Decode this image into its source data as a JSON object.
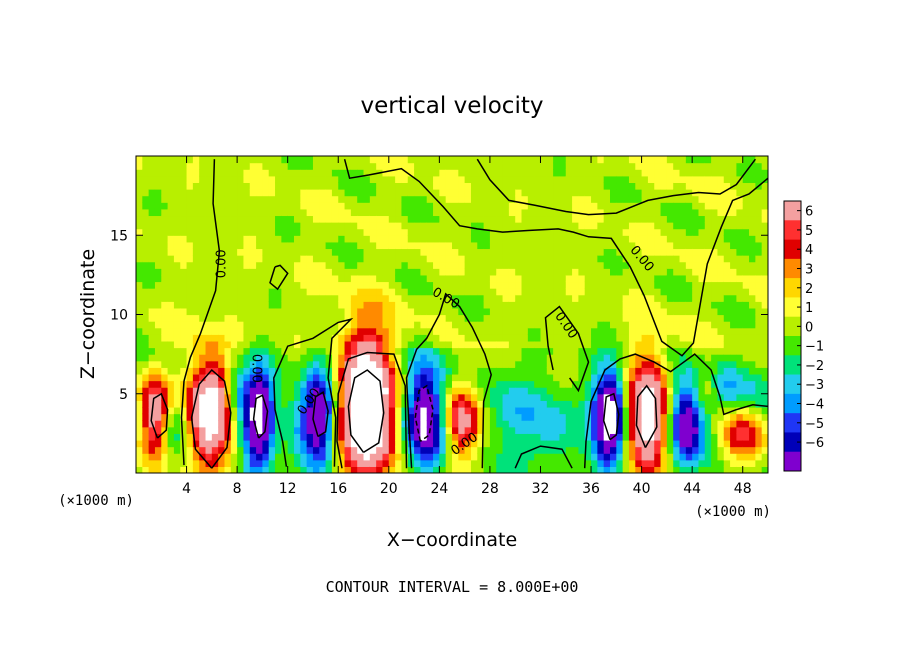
{
  "chart_data": {
    "type": "heatmap",
    "title": "vertical velocity",
    "xlabel": "X−coordinate",
    "ylabel": "Z−coordinate",
    "x_unit_label": "(×1000 m)",
    "z_unit_label": "(×1000 m)",
    "xlim": [
      0,
      50
    ],
    "ylim": [
      0,
      20
    ],
    "x_ticks": [
      4,
      8,
      12,
      16,
      20,
      24,
      28,
      32,
      36,
      40,
      44,
      48
    ],
    "y_ticks": [
      5,
      10,
      15
    ],
    "contour_label": "0.00",
    "footer": "CONTOUR INTERVAL = 8.000E+00",
    "colorbar": {
      "ticks": [
        "6",
        "5",
        "4",
        "3",
        "2",
        "1",
        "0",
        "−1",
        "−2",
        "−3",
        "−4",
        "−5",
        "−6"
      ],
      "colors": [
        "#f4a0a0",
        "#ff3030",
        "#e00000",
        "#ff8a00",
        "#ffd700",
        "#ffff33",
        "#b8ef00",
        "#44e800",
        "#00e27a",
        "#22ccee",
        "#009cff",
        "#1f36f5",
        "#0000b8",
        "#7f00cf"
      ]
    },
    "features": [
      {
        "x": 1.6,
        "z": 3.6,
        "sx": 0.9,
        "sy": 1.8,
        "amp": 7
      },
      {
        "x": 2.8,
        "z": 3.2,
        "sx": 0.9,
        "sy": 1.6,
        "amp": -3
      },
      {
        "x": 5.8,
        "z": 3.9,
        "sx": 1.3,
        "sy": 2.5,
        "amp": 9
      },
      {
        "x": 9.7,
        "z": 3.5,
        "sx": 0.85,
        "sy": 2.2,
        "amp": -8
      },
      {
        "x": 7.9,
        "z": 4.8,
        "sx": 0.7,
        "sy": 1.6,
        "amp": -3
      },
      {
        "x": 14.5,
        "z": 3.6,
        "sx": 0.9,
        "sy": 2.3,
        "amp": -7
      },
      {
        "x": 12.8,
        "z": 2.8,
        "sx": 0.8,
        "sy": 1.6,
        "amp": -2
      },
      {
        "x": 18.3,
        "z": 4.2,
        "sx": 1.6,
        "sy": 3.2,
        "amp": 11
      },
      {
        "x": 22.8,
        "z": 3.6,
        "sx": 1.1,
        "sy": 2.4,
        "amp": -8
      },
      {
        "x": 25.8,
        "z": 3.2,
        "sx": 1.0,
        "sy": 1.8,
        "amp": 6
      },
      {
        "x": 29.8,
        "z": 3.5,
        "sx": 1.8,
        "sy": 1.8,
        "amp": -2
      },
      {
        "x": 33.2,
        "z": 2.8,
        "sx": 1.4,
        "sy": 1.5,
        "amp": -2
      },
      {
        "x": 37.5,
        "z": 3.4,
        "sx": 0.9,
        "sy": 2.2,
        "amp": -9
      },
      {
        "x": 40.5,
        "z": 3.6,
        "sx": 1.2,
        "sy": 2.6,
        "amp": 9
      },
      {
        "x": 43.5,
        "z": 3.1,
        "sx": 1.0,
        "sy": 1.9,
        "amp": -7
      },
      {
        "x": 45.0,
        "z": 5.5,
        "sx": 0.7,
        "sy": 1.0,
        "amp": 2.5
      },
      {
        "x": 47.8,
        "z": 2.4,
        "sx": 1.2,
        "sy": 1.3,
        "amp": 4.5
      },
      {
        "x": 47.5,
        "z": 5.2,
        "sx": 2.4,
        "sy": 1.4,
        "amp": -2
      }
    ],
    "contours": [
      {
        "style": "solid",
        "points": [
          [
            6,
            0.3
          ],
          [
            4.7,
            1.5
          ],
          [
            4.4,
            3.5
          ],
          [
            5,
            5.6
          ],
          [
            6,
            6.5
          ],
          [
            7,
            5.8
          ],
          [
            7.5,
            3.8
          ],
          [
            7.2,
            1.6
          ],
          [
            6,
            0.3
          ]
        ]
      },
      {
        "style": "solid",
        "points": [
          [
            18,
            1.3
          ],
          [
            17,
            2.4
          ],
          [
            16.8,
            4.2
          ],
          [
            17.3,
            6
          ],
          [
            18.3,
            6.5
          ],
          [
            19.3,
            5.8
          ],
          [
            19.6,
            3.8
          ],
          [
            19.2,
            1.9
          ],
          [
            18,
            1.3
          ]
        ]
      },
      {
        "style": "solid",
        "points": [
          [
            40.3,
            1.6
          ],
          [
            39.6,
            3
          ],
          [
            39.7,
            4.8
          ],
          [
            40.4,
            5.5
          ],
          [
            41.1,
            4.7
          ],
          [
            41.2,
            2.9
          ],
          [
            40.3,
            1.6
          ]
        ]
      },
      {
        "style": "solid",
        "points": [
          [
            1.7,
            2.2
          ],
          [
            1.2,
            3.3
          ],
          [
            1.4,
            4.7
          ],
          [
            2,
            5
          ],
          [
            2.5,
            4
          ],
          [
            2.4,
            2.7
          ],
          [
            1.7,
            2.2
          ]
        ]
      },
      {
        "style": "solid",
        "points": [
          [
            9.7,
            2.2
          ],
          [
            9.3,
            3.4
          ],
          [
            9.5,
            4.7
          ],
          [
            10,
            4.9
          ],
          [
            10.4,
            3.9
          ],
          [
            10.2,
            2.6
          ],
          [
            9.7,
            2.2
          ]
        ]
      },
      {
        "style": "solid",
        "points": [
          [
            14.4,
            2.3
          ],
          [
            14,
            3.4
          ],
          [
            14.2,
            4.8
          ],
          [
            14.8,
            5.1
          ],
          [
            15.2,
            3.9
          ],
          [
            15,
            2.6
          ],
          [
            14.4,
            2.3
          ]
        ]
      },
      {
        "style": "solid",
        "points": [
          [
            37.5,
            2.1
          ],
          [
            37,
            3.3
          ],
          [
            37.2,
            4.8
          ],
          [
            37.8,
            5
          ],
          [
            38.2,
            3.7
          ],
          [
            38,
            2.4
          ],
          [
            37.5,
            2.1
          ]
        ]
      },
      {
        "style": "dashed",
        "points": [
          [
            22.5,
            2
          ],
          [
            22.1,
            3.5
          ],
          [
            22.4,
            5.2
          ],
          [
            23,
            5.5
          ],
          [
            23.5,
            4
          ],
          [
            23.2,
            2.4
          ],
          [
            22.5,
            2
          ]
        ]
      },
      {
        "style": "solid",
        "points": [
          [
            11.9,
            0.4
          ],
          [
            11.6,
            2
          ],
          [
            11,
            4
          ],
          [
            10.9,
            6
          ],
          [
            12,
            8
          ],
          [
            14,
            8.5
          ],
          [
            16,
            9.5
          ],
          [
            17,
            9.7
          ],
          [
            15.5,
            8.5
          ],
          [
            15.2,
            6
          ],
          [
            15.8,
            3.5
          ],
          [
            15.7,
            0.4
          ]
        ]
      },
      {
        "style": "solid",
        "points": [
          [
            6.2,
            19.8
          ],
          [
            6.1,
            17
          ],
          [
            6.6,
            14
          ],
          [
            6.3,
            11.5
          ],
          [
            5.1,
            8.8
          ],
          [
            4.3,
            7.3
          ],
          [
            3.8,
            5.8
          ],
          [
            3.6,
            3.5
          ],
          [
            3.8,
            0.5
          ]
        ]
      },
      {
        "style": "solid",
        "points": [
          [
            16.3,
            0.3
          ],
          [
            15.9,
            2
          ],
          [
            16,
            5
          ],
          [
            16.8,
            7.2
          ],
          [
            18.3,
            7.6
          ],
          [
            20.4,
            7.5
          ],
          [
            21.3,
            5.5
          ],
          [
            21.4,
            0.3
          ]
        ]
      },
      {
        "style": "solid",
        "points": [
          [
            21.8,
            0.3
          ],
          [
            21.6,
            3
          ],
          [
            21.4,
            6
          ],
          [
            22.2,
            7.8
          ],
          [
            23,
            8.5
          ],
          [
            24,
            10
          ],
          [
            24.5,
            11.3
          ],
          [
            25.6,
            10.5
          ],
          [
            26.6,
            9.2
          ],
          [
            27.6,
            7.5
          ],
          [
            28.1,
            6.2
          ],
          [
            27.5,
            4.5
          ],
          [
            27.4,
            0.3
          ]
        ]
      },
      {
        "style": "solid",
        "points": [
          [
            30,
            0.3
          ],
          [
            30.5,
            1.2
          ],
          [
            32,
            1.7
          ],
          [
            33.7,
            1.5
          ],
          [
            34.5,
            0.3
          ]
        ]
      },
      {
        "style": "solid",
        "points": [
          [
            33,
            6.5
          ],
          [
            32.6,
            8
          ],
          [
            32.4,
            9.8
          ],
          [
            33.5,
            10.5
          ],
          [
            35,
            8.8
          ],
          [
            35.8,
            7
          ],
          [
            35,
            5.2
          ],
          [
            34.3,
            6
          ]
        ]
      },
      {
        "style": "solid",
        "points": [
          [
            35.5,
            0.3
          ],
          [
            35.6,
            2
          ],
          [
            36,
            4.5
          ],
          [
            37.1,
            6.5
          ],
          [
            38.3,
            7.2
          ],
          [
            39.5,
            7.5
          ],
          [
            41,
            7
          ],
          [
            42.3,
            6.4
          ],
          [
            43,
            6.8
          ],
          [
            44.2,
            7.5
          ],
          [
            45.5,
            6.5
          ],
          [
            46.2,
            4.8
          ],
          [
            46.5,
            3.7
          ],
          [
            47.5,
            4
          ],
          [
            48.8,
            4.3
          ],
          [
            50,
            4.2
          ]
        ]
      },
      {
        "style": "solid",
        "points": [
          [
            16.5,
            19.8
          ],
          [
            16.9,
            18.6
          ],
          [
            18.4,
            18.8
          ],
          [
            21,
            19.2
          ],
          [
            22.4,
            18.4
          ],
          [
            24.3,
            16.8
          ],
          [
            25.6,
            15.6
          ],
          [
            27,
            15.4
          ],
          [
            29,
            15.2
          ],
          [
            31,
            15.3
          ],
          [
            33.4,
            15.4
          ],
          [
            34.6,
            15.2
          ],
          [
            35.8,
            14.9
          ],
          [
            37.6,
            14.8
          ],
          [
            39.1,
            13
          ],
          [
            40.2,
            11.2
          ],
          [
            41.6,
            8.3
          ],
          [
            43.2,
            7.4
          ],
          [
            44.1,
            8.2
          ],
          [
            45.2,
            13.2
          ],
          [
            46.3,
            15.5
          ],
          [
            47.2,
            17.2
          ],
          [
            48.5,
            17.6
          ],
          [
            50,
            18.6
          ]
        ]
      },
      {
        "style": "solid",
        "points": [
          [
            27,
            19.8
          ],
          [
            28,
            18.5
          ],
          [
            29.5,
            17.2
          ],
          [
            31.5,
            16.9
          ],
          [
            34,
            16.5
          ],
          [
            35.8,
            16.3
          ],
          [
            38,
            16.4
          ],
          [
            40.5,
            17.2
          ],
          [
            42.5,
            17.5
          ],
          [
            44.5,
            17.7
          ],
          [
            46.2,
            17.6
          ],
          [
            47.5,
            18.2
          ],
          [
            49,
            19.8
          ]
        ]
      },
      {
        "style": "solid",
        "points": [
          [
            11,
            13
          ],
          [
            10.6,
            12
          ],
          [
            11.2,
            11.6
          ],
          [
            12,
            12.6
          ],
          [
            11.4,
            13.1
          ],
          [
            11,
            13
          ]
        ]
      }
    ],
    "inline_labels": [
      {
        "x": 6.8,
        "z": 13.2,
        "rot": -90
      },
      {
        "x": 9.5,
        "z": 6.6,
        "rot": 90
      },
      {
        "x": 13.7,
        "z": 4.5,
        "rot": -55
      },
      {
        "x": 24.5,
        "z": 11.0,
        "rot": 30
      },
      {
        "x": 34.0,
        "z": 9.3,
        "rot": 55
      },
      {
        "x": 40.0,
        "z": 13.5,
        "rot": 50
      },
      {
        "x": 26.0,
        "z": 1.8,
        "rot": -35
      }
    ]
  }
}
